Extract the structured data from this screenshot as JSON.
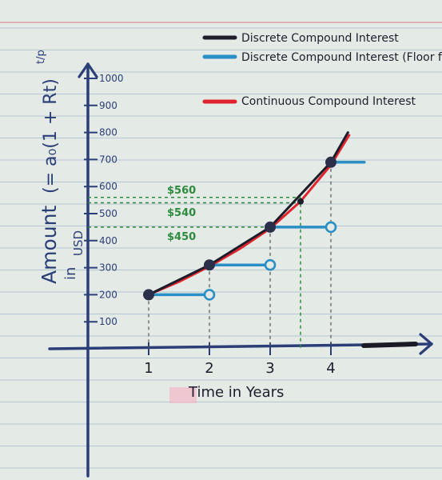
{
  "chart_data": {
    "type": "line",
    "xlabel": "Time in Years",
    "ylabel_main": "Amount",
    "ylabel_formula": "(= a₀(1 + Rt)",
    "ylabel_exponent": "t/p",
    "ylabel_unit_line1": "in",
    "ylabel_unit_line2": "USD",
    "x_ticks": [
      "1",
      "2",
      "3",
      "4"
    ],
    "y_ticks": [
      "100",
      "200",
      "300",
      "400",
      "500",
      "600",
      "700",
      "800",
      "900",
      "1000"
    ],
    "xlim": [
      0,
      5
    ],
    "ylim": [
      0,
      1000
    ],
    "series": [
      {
        "name": "Discrete Compound Interest",
        "color": "#1e1e2a",
        "x": [
          1,
          2,
          3,
          4
        ],
        "y": [
          200,
          310,
          450,
          690
        ]
      },
      {
        "name": "Discrete Compound Interest (Floor function)",
        "color": "#2a8fc4",
        "steps": [
          {
            "x0": 1,
            "x1": 2,
            "y": 200
          },
          {
            "x0": 2,
            "x1": 3,
            "y": 310
          },
          {
            "x0": 3,
            "x1": 4,
            "y": 450
          },
          {
            "x0": 4,
            "x1": 4.55,
            "y": 690
          }
        ]
      },
      {
        "name": "Continuous Compound Interest",
        "color": "#e0242e",
        "x": [
          1,
          1.5,
          2,
          2.5,
          3,
          3.5,
          4,
          4.3
        ],
        "y": [
          200,
          248,
          305,
          370,
          445,
          545,
          680,
          790
        ]
      }
    ],
    "annotations": [
      {
        "label": "$560",
        "y": 560,
        "x": 3.5
      },
      {
        "label": "$540",
        "y": 540,
        "x": 3.5
      },
      {
        "label": "$450",
        "y": 450,
        "x": 3.5
      }
    ],
    "legend_position": "top-right",
    "grid": false
  },
  "colors": {
    "paper": "#e4eae6",
    "rule_lines": "#8fa8c4",
    "margin_line": "#e08a9a",
    "axis": "#2c3e78",
    "annotation": "#2e8b3e"
  }
}
